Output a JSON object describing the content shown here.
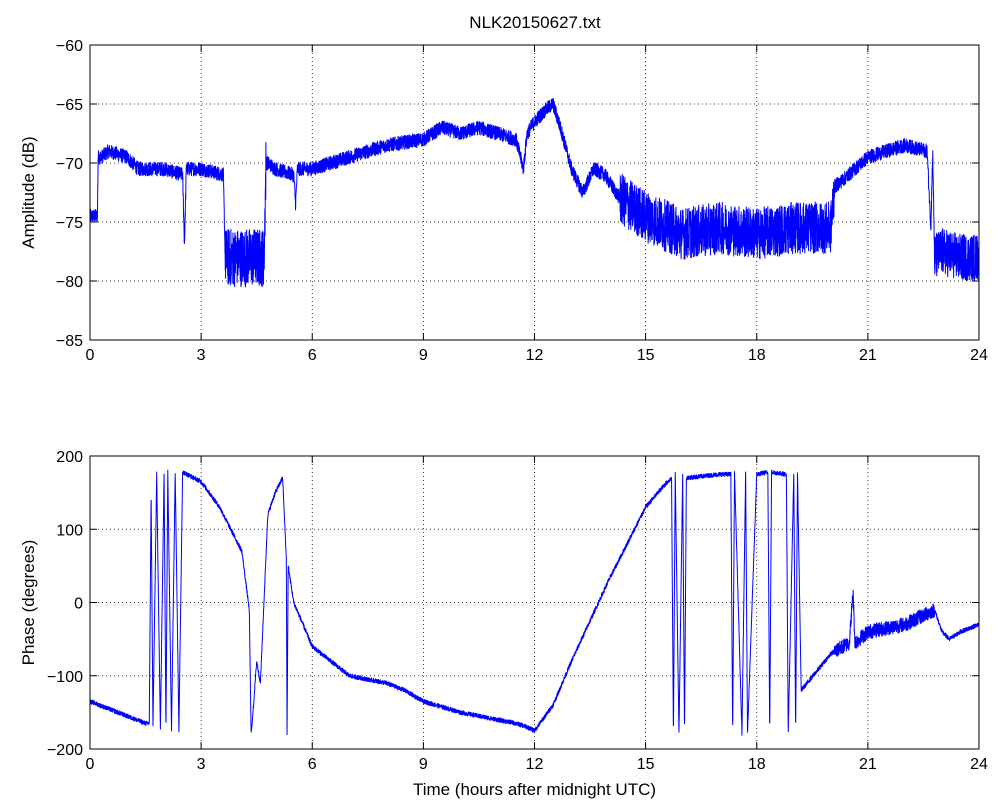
{
  "chart_data": [
    {
      "type": "line",
      "title": "NLK20150627.txt",
      "xlabel": "",
      "ylabel": "Amplitude (dB)",
      "xlim": [
        0,
        24
      ],
      "ylim": [
        -85,
        -60
      ],
      "xticks": [
        0,
        3,
        6,
        9,
        12,
        15,
        18,
        21,
        24
      ],
      "yticks": [
        -85,
        -80,
        -75,
        -70,
        -65,
        -60
      ],
      "grid": true,
      "line_color": "#0000ff",
      "series": [
        {
          "x": [
            0.0,
            0.2,
            0.22,
            0.3,
            0.5,
            1.0,
            1.3,
            2.0,
            2.5,
            2.55,
            2.6,
            2.65,
            3.0,
            3.6,
            3.65,
            3.7,
            4.0,
            4.5,
            4.7,
            4.75,
            4.8,
            5.0,
            5.5,
            5.55,
            5.6,
            6.0,
            7.0,
            8.0,
            9.0,
            9.5,
            10.0,
            10.5,
            11.0,
            11.5,
            11.7,
            11.8,
            12.0,
            12.3,
            12.5,
            12.7,
            13.0,
            13.3,
            13.6,
            13.9,
            14.3,
            15.0,
            16.0,
            17.0,
            18.0,
            19.0,
            19.5,
            20.0,
            20.1,
            20.3,
            21.0,
            21.5,
            22.0,
            22.6,
            22.7,
            22.75,
            22.8,
            23.0,
            23.5,
            24.0
          ],
          "y": [
            -74.5,
            -74.5,
            -69.5,
            -69.5,
            -69.0,
            -69.5,
            -70.5,
            -70.5,
            -71.0,
            -77.0,
            -70.5,
            -70.5,
            -70.5,
            -71.0,
            -78.0,
            -78.0,
            -78.0,
            -78.0,
            -78.0,
            -70.0,
            -70.0,
            -70.5,
            -71.0,
            -73.5,
            -70.5,
            -70.5,
            -69.5,
            -68.5,
            -68.0,
            -67.0,
            -67.5,
            -67.0,
            -67.5,
            -68.0,
            -70.5,
            -67.5,
            -66.5,
            -65.5,
            -65.0,
            -67.0,
            -70.5,
            -72.5,
            -70.5,
            -71.0,
            -73.0,
            -74.5,
            -76.0,
            -75.5,
            -76.0,
            -75.5,
            -75.5,
            -75.5,
            -72.0,
            -71.5,
            -69.5,
            -69.0,
            -68.5,
            -69.0,
            -75.5,
            -69.0,
            -78.0,
            -77.5,
            -78.0,
            -78.0
          ]
        }
      ]
    },
    {
      "type": "line",
      "title": "",
      "xlabel": "Time (hours after midnight UTC)",
      "ylabel": "Phase (degrees)",
      "xlim": [
        0,
        24
      ],
      "ylim": [
        -200,
        200
      ],
      "xticks": [
        0,
        3,
        6,
        9,
        12,
        15,
        18,
        21,
        24
      ],
      "yticks": [
        -200,
        -100,
        0,
        100,
        200
      ],
      "grid": true,
      "line_color": "#0000ff",
      "series": [
        {
          "x": [
            0.0,
            0.5,
            1.0,
            1.5,
            1.6,
            1.65,
            1.7,
            1.8,
            1.9,
            2.0,
            2.05,
            2.1,
            2.2,
            2.3,
            2.4,
            2.5,
            3.0,
            3.5,
            3.8,
            4.1,
            4.3,
            4.35,
            4.4,
            4.5,
            4.6,
            4.8,
            5.0,
            5.2,
            5.3,
            5.32,
            5.35,
            5.5,
            6.0,
            7.0,
            8.0,
            8.5,
            9.0,
            10.0,
            11.0,
            11.5,
            11.8,
            12.0,
            12.5,
            13.0,
            14.0,
            15.0,
            15.5,
            15.7,
            15.75,
            15.8,
            15.9,
            16.0,
            16.05,
            16.1,
            17.0,
            17.3,
            17.35,
            17.4,
            17.6,
            17.7,
            17.75,
            18.0,
            18.3,
            18.35,
            18.4,
            18.8,
            18.85,
            19.0,
            19.05,
            19.1,
            19.2,
            20.0,
            20.5,
            20.6,
            20.65,
            21.0,
            22.0,
            22.8,
            23.0,
            23.2,
            23.5,
            24.0
          ],
          "y": [
            -135,
            -145,
            -155,
            -165,
            -165,
            150,
            -170,
            175,
            -175,
            178,
            -175,
            178,
            -175,
            178,
            -175,
            178,
            165,
            130,
            100,
            70,
            -10,
            -180,
            -150,
            -80,
            -110,
            120,
            150,
            170,
            60,
            -180,
            50,
            0,
            -60,
            -100,
            -110,
            -120,
            -135,
            -150,
            -160,
            -165,
            -170,
            -175,
            -140,
            -80,
            30,
            130,
            160,
            170,
            -180,
            175,
            -180,
            175,
            -180,
            170,
            175,
            175,
            -180,
            178,
            -180,
            178,
            -180,
            175,
            178,
            -180,
            178,
            175,
            -180,
            178,
            -180,
            175,
            -120,
            -70,
            -55,
            15,
            -55,
            -40,
            -30,
            -10,
            -40,
            -50,
            -40,
            -30
          ]
        }
      ]
    }
  ]
}
